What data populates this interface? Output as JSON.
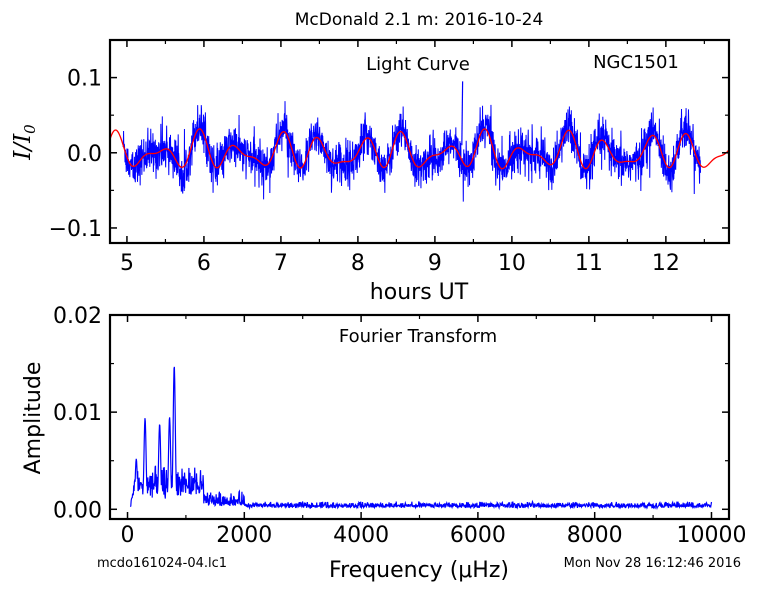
{
  "figure_title": "McDonald 2.1 m:  2016-10-24",
  "footer": {
    "left": "mcdo161024-04.lc1",
    "right": "Mon Nov 28 16:12:46 2016"
  },
  "colors": {
    "data": "#0000ff",
    "model": "#ff0000",
    "axes": "#000000"
  },
  "chart_data": [
    {
      "type": "line",
      "title": "Light Curve",
      "annotation": "NGC1501",
      "xlabel": "hours UT",
      "ylabel": "I/I0",
      "xlim": [
        4.78,
        12.82
      ],
      "ylim": [
        -0.12,
        0.15
      ],
      "xticks": [
        5,
        6,
        7,
        8,
        9,
        10,
        11,
        12
      ],
      "xtick_labels": [
        "5",
        "6",
        "7",
        "8",
        "9",
        "10",
        "11",
        "12"
      ],
      "yticks": [
        -0.1,
        0.0,
        0.1
      ],
      "ytick_labels": [
        "−0.1",
        "0.0",
        "0.1"
      ],
      "grid": false,
      "series": [
        {
          "role": "data",
          "color": "#0000ff",
          "x_range": [
            4.95,
            12.45
          ],
          "typical_amplitude": 0.03,
          "max": 0.095,
          "min": -0.065
        },
        {
          "role": "model",
          "color": "#ff0000",
          "x_range": [
            4.78,
            12.82
          ],
          "amplitude_range": [
            0.005,
            0.03
          ]
        }
      ]
    },
    {
      "type": "line",
      "title": "Fourier Transform",
      "xlabel": "Frequency (μHz)",
      "ylabel": "Amplitude",
      "xlim": [
        -300,
        10300
      ],
      "ylim": [
        -0.001,
        0.02
      ],
      "xticks": [
        0,
        2000,
        4000,
        6000,
        8000,
        10000
      ],
      "xtick_labels": [
        "0",
        "2000",
        "4000",
        "6000",
        "8000",
        "10000"
      ],
      "yticks": [
        0.0,
        0.01,
        0.02
      ],
      "ytick_labels": [
        "0.00",
        "0.01",
        "0.02"
      ],
      "grid": false,
      "series": [
        {
          "color": "#0000ff",
          "x_range": [
            50,
            10000
          ],
          "peaks": [
            {
              "x": 150,
              "y": 0.0052
            },
            {
              "x": 300,
              "y": 0.0094
            },
            {
              "x": 550,
              "y": 0.0088
            },
            {
              "x": 720,
              "y": 0.0095
            },
            {
              "x": 800,
              "y": 0.0148
            }
          ],
          "noise_floor": 0.0005
        }
      ]
    }
  ]
}
